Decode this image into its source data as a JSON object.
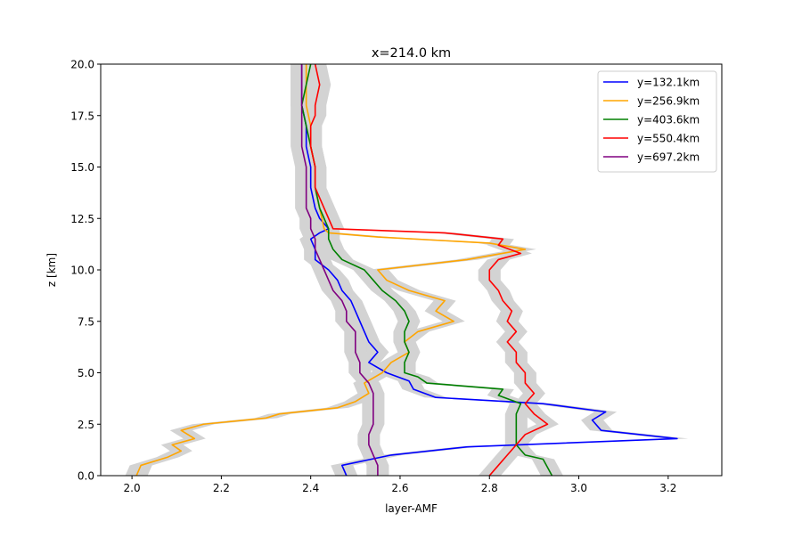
{
  "chart_data": {
    "type": "line",
    "title": "x=214.0 km",
    "xlabel": "layer-AMF",
    "ylabel": "z [km]",
    "xlim": [
      1.93,
      3.32
    ],
    "ylim": [
      0,
      20
    ],
    "xticks": [
      2.0,
      2.2,
      2.4,
      2.6,
      2.8,
      3.0,
      3.2
    ],
    "xtick_labels": [
      "2.0",
      "2.2",
      "2.4",
      "2.6",
      "2.8",
      "3.0",
      "3.2"
    ],
    "yticks": [
      0,
      2.5,
      5,
      7.5,
      10,
      12.5,
      15,
      17.5,
      20
    ],
    "ytick_labels": [
      "0.0",
      "2.5",
      "5.0",
      "7.5",
      "10.0",
      "12.5",
      "15.0",
      "17.5",
      "20.0"
    ],
    "legend_position": "top-right",
    "uncertainty_band": {
      "color": "#d3d3d3",
      "half_width": 0.025
    },
    "series": [
      {
        "name": "y=132.1km",
        "color": "#0000ff",
        "z": [
          0,
          0.5,
          1.0,
          1.4,
          1.8,
          2.2,
          2.7,
          3.1,
          3.5,
          3.8,
          4.2,
          4.6,
          5.0,
          5.5,
          6.0,
          6.5,
          7.0,
          7.5,
          8.0,
          8.5,
          9.0,
          9.5,
          10.0,
          10.5,
          11.0,
          11.5,
          11.8,
          12.0,
          12.5,
          13.0,
          14.0,
          15.0,
          16.0,
          17.0,
          18.0,
          19.0,
          20.0
        ],
        "x": [
          2.48,
          2.47,
          2.58,
          2.75,
          3.22,
          3.05,
          3.03,
          3.06,
          2.92,
          2.68,
          2.63,
          2.62,
          2.57,
          2.53,
          2.55,
          2.53,
          2.52,
          2.51,
          2.5,
          2.49,
          2.47,
          2.46,
          2.44,
          2.41,
          2.41,
          2.4,
          2.42,
          2.44,
          2.42,
          2.41,
          2.4,
          2.4,
          2.39,
          2.39,
          2.38,
          2.38,
          2.38
        ]
      },
      {
        "name": "y=256.9km",
        "color": "#ffa500",
        "z": [
          0,
          0.5,
          0.9,
          1.2,
          1.5,
          1.8,
          2.2,
          2.5,
          2.8,
          3.0,
          3.3,
          3.6,
          4.0,
          4.5,
          5.0,
          5.5,
          6.0,
          6.5,
          7.0,
          7.5,
          8.0,
          8.5,
          9.0,
          9.5,
          10.0,
          10.5,
          11.0,
          11.3,
          11.6,
          11.8,
          12.0,
          13.0,
          14.0,
          15.0,
          16.0,
          17.0,
          18.0,
          19.0,
          20.0
        ],
        "x": [
          2.01,
          2.02,
          2.08,
          2.11,
          2.09,
          2.14,
          2.11,
          2.16,
          2.3,
          2.33,
          2.46,
          2.5,
          2.53,
          2.52,
          2.56,
          2.58,
          2.62,
          2.61,
          2.64,
          2.72,
          2.68,
          2.7,
          2.62,
          2.57,
          2.55,
          2.75,
          2.88,
          2.8,
          2.55,
          2.44,
          2.43,
          2.42,
          2.41,
          2.41,
          2.4,
          2.4,
          2.39,
          2.39,
          2.39
        ]
      },
      {
        "name": "y=403.6km",
        "color": "#008000",
        "z": [
          0,
          0.4,
          0.8,
          1.0,
          1.5,
          2.0,
          2.5,
          3.0,
          3.5,
          3.9,
          4.2,
          4.5,
          4.8,
          5.0,
          5.5,
          6.0,
          6.5,
          7.0,
          7.5,
          8.0,
          8.5,
          9.0,
          9.5,
          10.0,
          10.5,
          11.0,
          11.5,
          12.0,
          12.5,
          13.0,
          14.0,
          15.0,
          16.0,
          17.0,
          18.0,
          19.0,
          20.0
        ],
        "x": [
          2.94,
          2.93,
          2.92,
          2.88,
          2.86,
          2.86,
          2.86,
          2.86,
          2.87,
          2.82,
          2.83,
          2.66,
          2.64,
          2.61,
          2.61,
          2.62,
          2.61,
          2.61,
          2.62,
          2.61,
          2.59,
          2.56,
          2.54,
          2.52,
          2.47,
          2.45,
          2.44,
          2.44,
          2.43,
          2.42,
          2.41,
          2.41,
          2.4,
          2.39,
          2.38,
          2.39,
          2.4
        ]
      },
      {
        "name": "y=550.4km",
        "color": "#ff0000",
        "z": [
          0,
          0.5,
          1.0,
          1.5,
          2.0,
          2.5,
          3.0,
          3.5,
          4.0,
          4.5,
          5.0,
          5.5,
          6.0,
          6.5,
          7.0,
          7.5,
          8.0,
          8.5,
          9.0,
          9.5,
          10.0,
          10.5,
          10.8,
          11.2,
          11.5,
          11.8,
          12.0,
          12.5,
          13.0,
          14.0,
          15.0,
          16.0,
          17.0,
          17.5,
          18.0,
          19.0,
          20.0
        ],
        "x": [
          2.8,
          2.82,
          2.84,
          2.86,
          2.88,
          2.93,
          2.9,
          2.88,
          2.9,
          2.88,
          2.88,
          2.86,
          2.86,
          2.84,
          2.86,
          2.84,
          2.85,
          2.83,
          2.82,
          2.8,
          2.8,
          2.82,
          2.87,
          2.82,
          2.83,
          2.7,
          2.45,
          2.44,
          2.43,
          2.41,
          2.41,
          2.4,
          2.4,
          2.41,
          2.41,
          2.42,
          2.41
        ]
      },
      {
        "name": "y=697.2km",
        "color": "#800080",
        "z": [
          0,
          0.5,
          1.0,
          1.5,
          2.0,
          2.5,
          3.0,
          3.5,
          4.0,
          4.5,
          5.0,
          5.5,
          6.0,
          6.5,
          7.0,
          7.5,
          8.0,
          8.5,
          9.0,
          9.5,
          10.0,
          10.5,
          11.0,
          11.5,
          12.0,
          12.5,
          13.0,
          14.0,
          15.0,
          16.0,
          17.0,
          18.0,
          19.0,
          20.0
        ],
        "x": [
          2.55,
          2.55,
          2.54,
          2.53,
          2.53,
          2.54,
          2.54,
          2.54,
          2.54,
          2.53,
          2.51,
          2.51,
          2.5,
          2.5,
          2.5,
          2.48,
          2.48,
          2.47,
          2.45,
          2.44,
          2.43,
          2.42,
          2.41,
          2.41,
          2.4,
          2.4,
          2.39,
          2.39,
          2.39,
          2.38,
          2.38,
          2.38,
          2.38,
          2.38
        ]
      }
    ]
  }
}
